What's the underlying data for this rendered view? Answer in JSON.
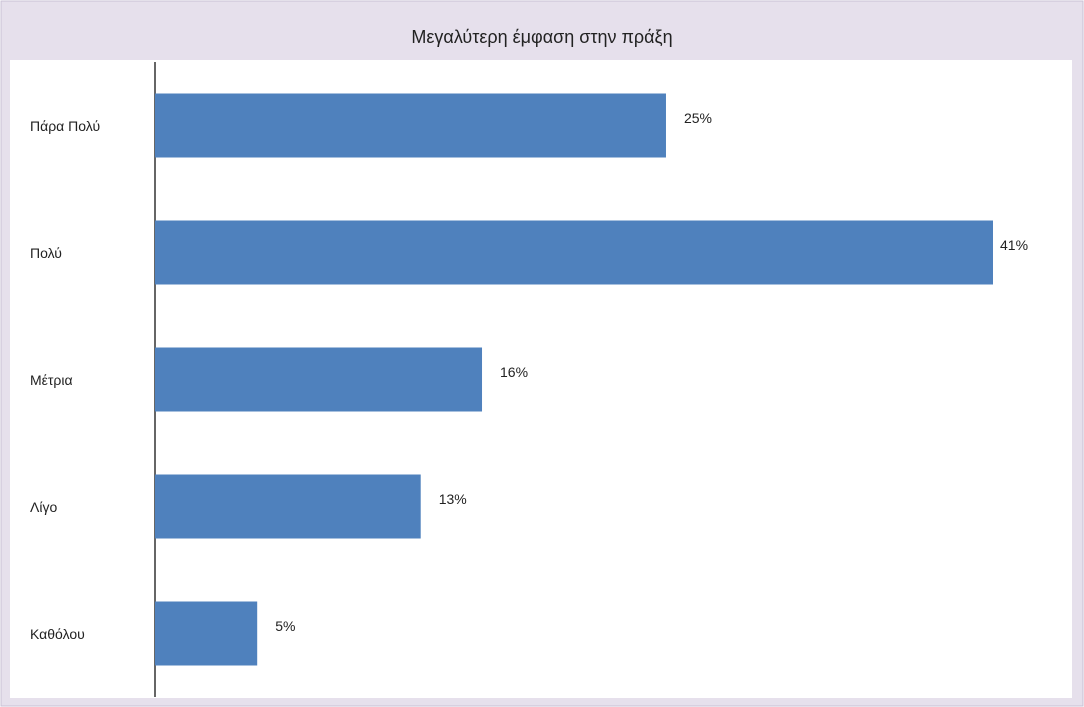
{
  "chart_data": {
    "type": "bar",
    "orientation": "horizontal",
    "title": "Μεγαλύτερη έμφαση στην πράξη",
    "categories": [
      "Πάρα Πολύ",
      "Πολύ",
      "Μέτρια",
      "Λίγο",
      "Καθόλου"
    ],
    "values": [
      25,
      41,
      16,
      13,
      5
    ],
    "value_labels": [
      "25%",
      "41%",
      "16%",
      "13%",
      "5%"
    ],
    "color": "#4f81bd"
  }
}
